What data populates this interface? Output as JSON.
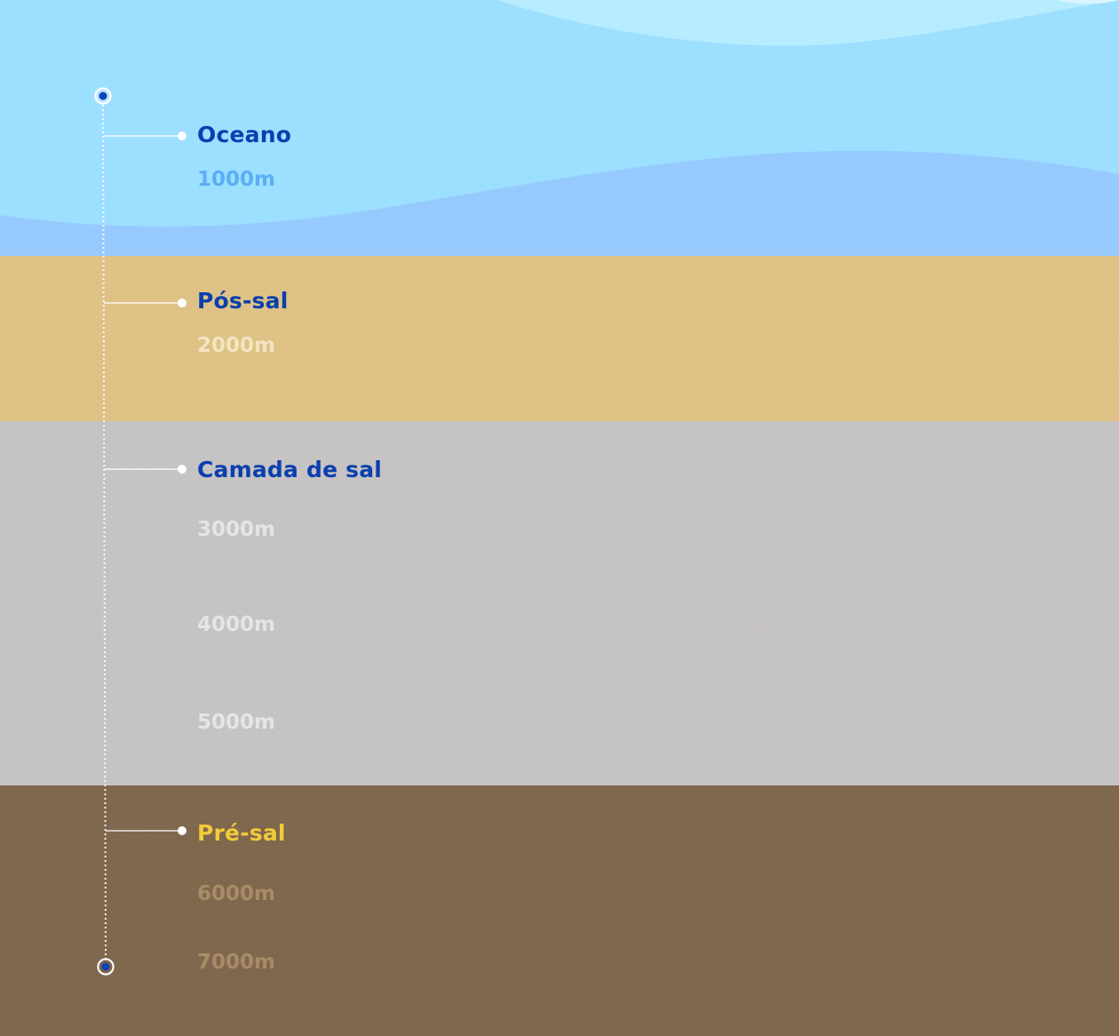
{
  "colors": {
    "ocean_top": "#9ddfff",
    "ocean_wave_light": "#b7ecff",
    "ocean_wave_deep": "#96caff",
    "pos_sal": "#e6c98c",
    "salt": "#c9c6c6",
    "pre_sal": "#7c644a",
    "label_blue": "#0a3fae",
    "label_yellow": "#f1cb3a",
    "depth_ocean": "#5aaef5",
    "depth_pos_sal": "#f3e4c2",
    "depth_salt": "#e6e4e4",
    "depth_pre_sal": "#a88b67",
    "marker_blue": "#0b44b8",
    "line_white": "#ffffff"
  },
  "layers": [
    {
      "label": "Oceano",
      "depths": [
        "1000m"
      ]
    },
    {
      "label": "Pós-sal",
      "depths": [
        "2000m"
      ]
    },
    {
      "label": "Camada de sal",
      "depths": [
        "3000m",
        "4000m",
        "5000m"
      ]
    },
    {
      "label": "Pré-sal",
      "depths": [
        "6000m",
        "7000m"
      ]
    }
  ]
}
